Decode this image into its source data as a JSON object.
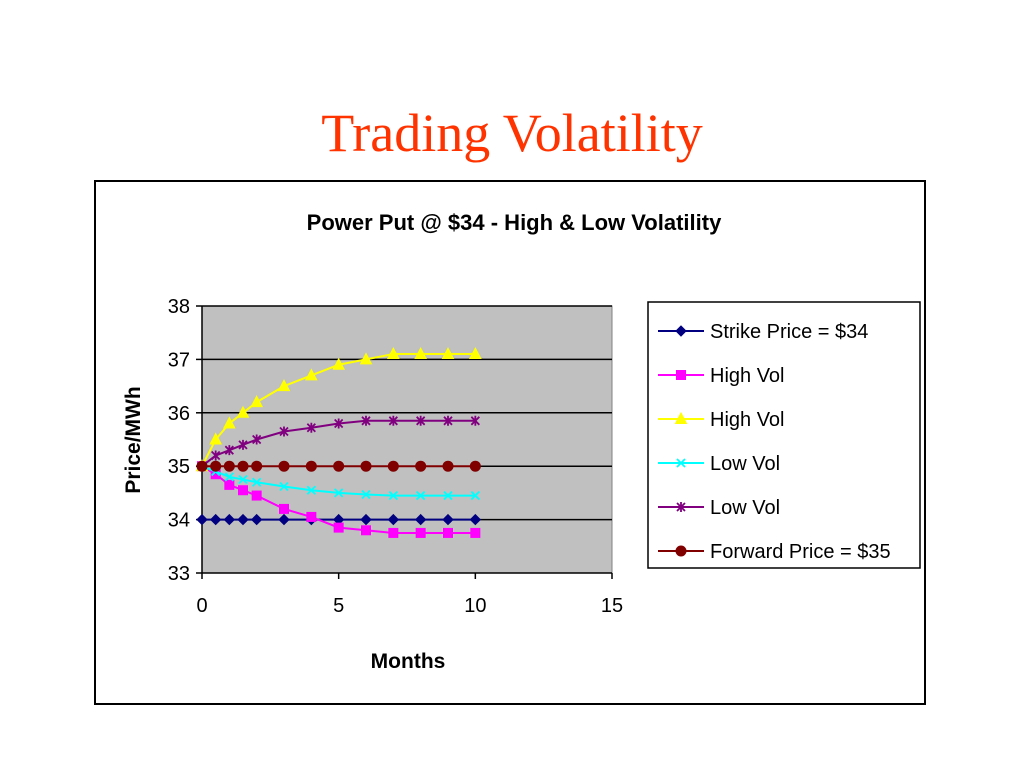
{
  "slide": {
    "title": "Trading Volatility"
  },
  "chart_data": {
    "type": "line",
    "title": "Power Put @ $34 - High & Low Volatility",
    "xlabel": "Months",
    "ylabel": "Price/MWh",
    "xlim": [
      0,
      15
    ],
    "ylim": [
      33,
      38
    ],
    "xticks": [
      0,
      5,
      10,
      15
    ],
    "yticks": [
      33,
      34,
      35,
      36,
      37,
      38
    ],
    "grid": "horizontal",
    "plot_background": "#c0c0c0",
    "legend_position": "right",
    "series": [
      {
        "name": "Strike Price = $34",
        "color": "#000080",
        "marker": "diamond",
        "x": [
          0,
          0.5,
          1,
          1.5,
          2,
          3,
          4,
          5,
          6,
          7,
          8,
          9,
          10
        ],
        "y": [
          34,
          34,
          34,
          34,
          34,
          34,
          34,
          34,
          34,
          34,
          34,
          34,
          34
        ]
      },
      {
        "name": "High Vol",
        "color": "#ff00ff",
        "marker": "square",
        "x": [
          0,
          0.5,
          1,
          1.5,
          2,
          3,
          4,
          5,
          6,
          7,
          8,
          9,
          10
        ],
        "y": [
          35,
          34.85,
          34.65,
          34.55,
          34.45,
          34.2,
          34.05,
          33.85,
          33.8,
          33.75,
          33.75,
          33.75,
          33.75
        ]
      },
      {
        "name": "High Vol",
        "color": "#ffff00",
        "marker": "triangle",
        "x": [
          0,
          0.5,
          1,
          1.5,
          2,
          3,
          4,
          5,
          6,
          7,
          8,
          9,
          10
        ],
        "y": [
          35,
          35.5,
          35.8,
          36.0,
          36.2,
          36.5,
          36.7,
          36.9,
          37.0,
          37.1,
          37.1,
          37.1,
          37.1
        ]
      },
      {
        "name": "Low Vol",
        "color": "#00ffff",
        "marker": "x",
        "x": [
          0,
          0.5,
          1,
          1.5,
          2,
          3,
          4,
          5,
          6,
          7,
          8,
          9,
          10
        ],
        "y": [
          35,
          34.9,
          34.8,
          34.75,
          34.7,
          34.62,
          34.55,
          34.5,
          34.47,
          34.45,
          34.45,
          34.45,
          34.45
        ]
      },
      {
        "name": "Low Vol",
        "color": "#800080",
        "marker": "star",
        "x": [
          0,
          0.5,
          1,
          1.5,
          2,
          3,
          4,
          5,
          6,
          7,
          8,
          9,
          10
        ],
        "y": [
          35,
          35.2,
          35.3,
          35.4,
          35.5,
          35.65,
          35.72,
          35.8,
          35.85,
          35.85,
          35.85,
          35.85,
          35.85
        ]
      },
      {
        "name": "Forward Price = $35",
        "color": "#800000",
        "marker": "circle",
        "x": [
          0,
          0.5,
          1,
          1.5,
          2,
          3,
          4,
          5,
          6,
          7,
          8,
          9,
          10
        ],
        "y": [
          35,
          35,
          35,
          35,
          35,
          35,
          35,
          35,
          35,
          35,
          35,
          35,
          35
        ]
      }
    ]
  }
}
